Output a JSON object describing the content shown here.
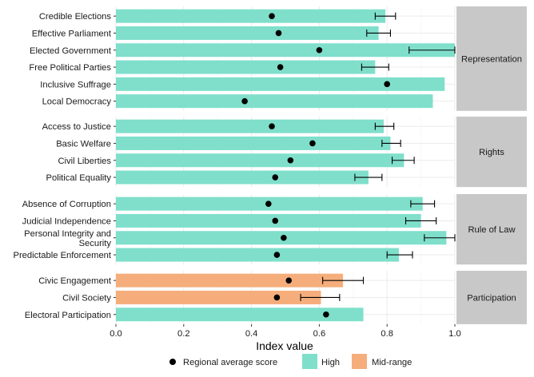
{
  "chart_data": {
    "type": "bar",
    "orientation": "horizontal",
    "xlabel": "Index value",
    "xlim": [
      0,
      1
    ],
    "xticks": [
      "0.0",
      "0.2",
      "0.4",
      "0.6",
      "0.8",
      "1.0"
    ],
    "grid": true,
    "legend_position": "bottom",
    "colors": {
      "High": "#7fdfcb",
      "Mid-range": "#f5ae7b",
      "point": "#000000",
      "strip": "#c8c8c8",
      "grid": "#ebebeb"
    },
    "legend": {
      "point_label": "Regional average score",
      "fill_labels": [
        "High",
        "Mid-range"
      ]
    },
    "panels": [
      {
        "name": "Representation",
        "rows": [
          {
            "label": "Credible Elections",
            "value": 0.795,
            "category": "High",
            "avg": 0.46,
            "err": [
              0.765,
              0.825
            ]
          },
          {
            "label": "Effective Parliament",
            "value": 0.775,
            "category": "High",
            "avg": 0.48,
            "err": [
              0.74,
              0.81
            ]
          },
          {
            "label": "Elected Government",
            "value": 1.0,
            "category": "High",
            "avg": 0.6,
            "err": [
              0.865,
              1.0
            ]
          },
          {
            "label": "Free Political Parties",
            "value": 0.765,
            "category": "High",
            "avg": 0.485,
            "err": [
              0.725,
              0.805
            ]
          },
          {
            "label": "Inclusive Suffrage",
            "value": 0.97,
            "category": "High",
            "avg": 0.8,
            "err": null
          },
          {
            "label": "Local Democracy",
            "value": 0.935,
            "category": "High",
            "avg": 0.38,
            "err": null
          }
        ]
      },
      {
        "name": "Rights",
        "rows": [
          {
            "label": "Access to Justice",
            "value": 0.79,
            "category": "High",
            "avg": 0.46,
            "err": [
              0.765,
              0.82
            ]
          },
          {
            "label": "Basic Welfare",
            "value": 0.81,
            "category": "High",
            "avg": 0.58,
            "err": [
              0.785,
              0.84
            ]
          },
          {
            "label": "Civil Liberties",
            "value": 0.85,
            "category": "High",
            "avg": 0.515,
            "err": [
              0.815,
              0.88
            ]
          },
          {
            "label": "Political Equality",
            "value": 0.745,
            "category": "High",
            "avg": 0.47,
            "err": [
              0.705,
              0.785
            ]
          }
        ]
      },
      {
        "name": "Rule of Law",
        "rows": [
          {
            "label": "Absence of Corruption",
            "value": 0.905,
            "category": "High",
            "avg": 0.45,
            "err": [
              0.87,
              0.94
            ]
          },
          {
            "label": "Judicial Independence",
            "value": 0.9,
            "category": "High",
            "avg": 0.47,
            "err": [
              0.855,
              0.945
            ]
          },
          {
            "label": "Personal Integrity and\nSecurity",
            "value": 0.975,
            "category": "High",
            "avg": 0.495,
            "err": [
              0.91,
              1.0
            ]
          },
          {
            "label": "Predictable Enforcement",
            "value": 0.835,
            "category": "High",
            "avg": 0.475,
            "err": [
              0.8,
              0.875
            ]
          }
        ]
      },
      {
        "name": "Participation",
        "rows": [
          {
            "label": "Civic Engagement",
            "value": 0.67,
            "category": "Mid-range",
            "avg": 0.51,
            "err": [
              0.61,
              0.73
            ]
          },
          {
            "label": "Civil Society",
            "value": 0.605,
            "category": "Mid-range",
            "avg": 0.475,
            "err": [
              0.545,
              0.66
            ]
          },
          {
            "label": "Electoral Participation",
            "value": 0.73,
            "category": "High",
            "avg": 0.62,
            "err": null
          }
        ]
      }
    ]
  }
}
